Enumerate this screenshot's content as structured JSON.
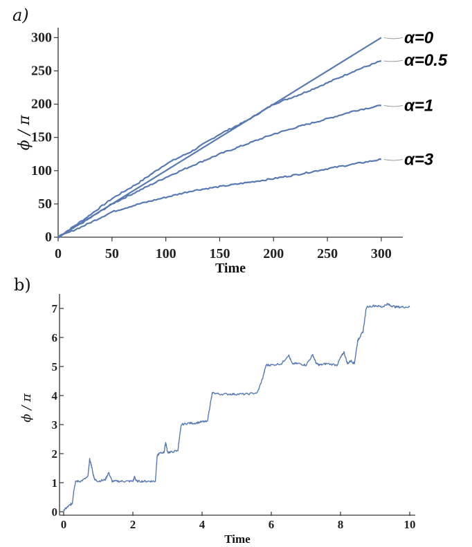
{
  "chart_data": [
    {
      "panel_label": "a)",
      "type": "line",
      "xlabel": "Time",
      "ylabel": "ϕ / π",
      "xlim": [
        0,
        320
      ],
      "ylim": [
        0,
        315
      ],
      "xticks": [
        0,
        50,
        100,
        150,
        200,
        250,
        300
      ],
      "yticks": [
        0,
        50,
        100,
        150,
        200,
        250,
        300
      ],
      "line_color": "#5779b3",
      "series": [
        {
          "name": "α=0",
          "x": [
            0,
            300
          ],
          "y": [
            0,
            300
          ]
        },
        {
          "name": "α=0.5",
          "x": [
            0,
            25,
            50,
            75,
            100,
            125,
            150,
            175,
            200,
            225,
            250,
            275,
            300
          ],
          "y": [
            0,
            28,
            58,
            82,
            110,
            130,
            155,
            175,
            200,
            215,
            232,
            250,
            265
          ]
        },
        {
          "name": "α=1",
          "x": [
            0,
            25,
            50,
            75,
            100,
            125,
            150,
            175,
            200,
            225,
            250,
            275,
            300
          ],
          "y": [
            0,
            24,
            50,
            70,
            90,
            108,
            125,
            140,
            155,
            167,
            178,
            190,
            198
          ]
        },
        {
          "name": "α=3",
          "x": [
            0,
            25,
            50,
            75,
            100,
            125,
            150,
            175,
            200,
            225,
            250,
            275,
            300
          ],
          "y": [
            0,
            18,
            38,
            50,
            60,
            70,
            76,
            82,
            88,
            95,
            103,
            110,
            117
          ]
        }
      ]
    },
    {
      "panel_label": "b)",
      "type": "line",
      "xlabel": "Time",
      "ylabel": "ϕ / π",
      "xlim": [
        0,
        10
      ],
      "ylim": [
        0,
        7.5
      ],
      "xticks": [
        0,
        2,
        4,
        6,
        8,
        10
      ],
      "yticks": [
        0,
        1,
        2,
        3,
        4,
        5,
        6,
        7
      ],
      "line_color": "#5779b3",
      "series": [
        {
          "x": [
            0,
            0.1,
            0.2,
            0.25,
            0.3,
            0.35,
            0.5,
            0.7,
            0.75,
            0.8,
            0.85,
            0.9,
            1.0,
            1.2,
            1.3,
            1.4,
            1.6,
            1.8,
            2.0,
            2.05,
            2.1,
            2.3,
            2.5,
            2.65,
            2.7,
            2.75,
            2.9,
            2.95,
            3.0,
            3.1,
            3.3,
            3.35,
            3.4,
            3.6,
            3.8,
            4.0,
            4.15,
            4.25,
            4.3,
            4.5,
            4.8,
            5.0,
            5.3,
            5.6,
            5.75,
            5.85,
            6.0,
            6.3,
            6.5,
            6.6,
            6.8,
            7.0,
            7.2,
            7.3,
            7.4,
            7.6,
            7.9,
            8.0,
            8.1,
            8.2,
            8.3,
            8.4,
            8.5,
            8.55,
            8.65,
            8.75,
            9.0,
            9.2,
            9.35,
            9.45,
            9.6,
            9.8,
            10.0
          ],
          "y": [
            0.05,
            0.15,
            0.25,
            0.3,
            0.8,
            1.05,
            1.05,
            1.2,
            1.8,
            1.6,
            1.3,
            1.1,
            1.05,
            1.1,
            1.35,
            1.05,
            1.05,
            1.05,
            1.05,
            1.2,
            1.05,
            1.05,
            1.05,
            1.05,
            1.9,
            2.0,
            2.05,
            2.4,
            2.05,
            2.05,
            2.1,
            2.6,
            3.0,
            3.05,
            3.05,
            3.1,
            3.1,
            3.8,
            4.1,
            4.05,
            4.05,
            4.05,
            4.05,
            4.1,
            4.6,
            5.05,
            5.05,
            5.1,
            5.4,
            5.1,
            5.1,
            5.05,
            5.4,
            5.1,
            5.05,
            5.1,
            5.05,
            5.3,
            5.5,
            5.1,
            5.2,
            5.1,
            5.9,
            6.0,
            6.2,
            7.05,
            7.1,
            7.05,
            7.15,
            7.1,
            7.05,
            7.05,
            7.05
          ]
        }
      ]
    }
  ]
}
